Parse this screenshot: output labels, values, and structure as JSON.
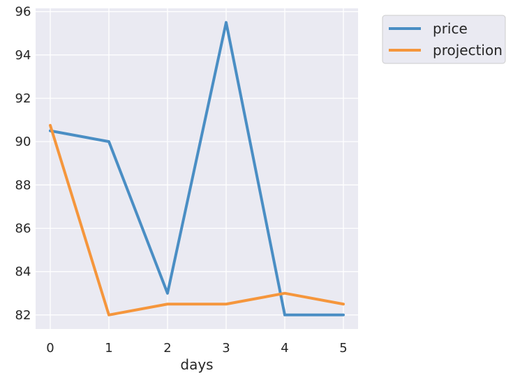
{
  "chart_data": {
    "type": "line",
    "title": "",
    "xlabel": "days",
    "ylabel": "",
    "x": [
      0,
      1,
      2,
      3,
      4,
      5
    ],
    "xlim": [
      -0.25,
      5.25
    ],
    "ylim": [
      81.35,
      96.15
    ],
    "xticks": [
      "0",
      "1",
      "2",
      "3",
      "4",
      "5"
    ],
    "yticks": [
      82,
      84,
      86,
      88,
      90,
      92,
      94,
      96
    ],
    "grid": true,
    "legend_position": "outside-top-right",
    "series": [
      {
        "name": "price",
        "color": "#4a8ec4",
        "values": [
          90.5,
          90.0,
          83.0,
          95.5,
          82.0,
          82.0
        ]
      },
      {
        "name": "projection",
        "color": "#f5963c",
        "values": [
          90.75,
          82.0,
          82.5,
          82.5,
          83.0,
          82.5
        ]
      }
    ],
    "colors": {
      "plot_background": "#eaeaf2",
      "grid": "#ffffff",
      "text": "#262626"
    }
  }
}
